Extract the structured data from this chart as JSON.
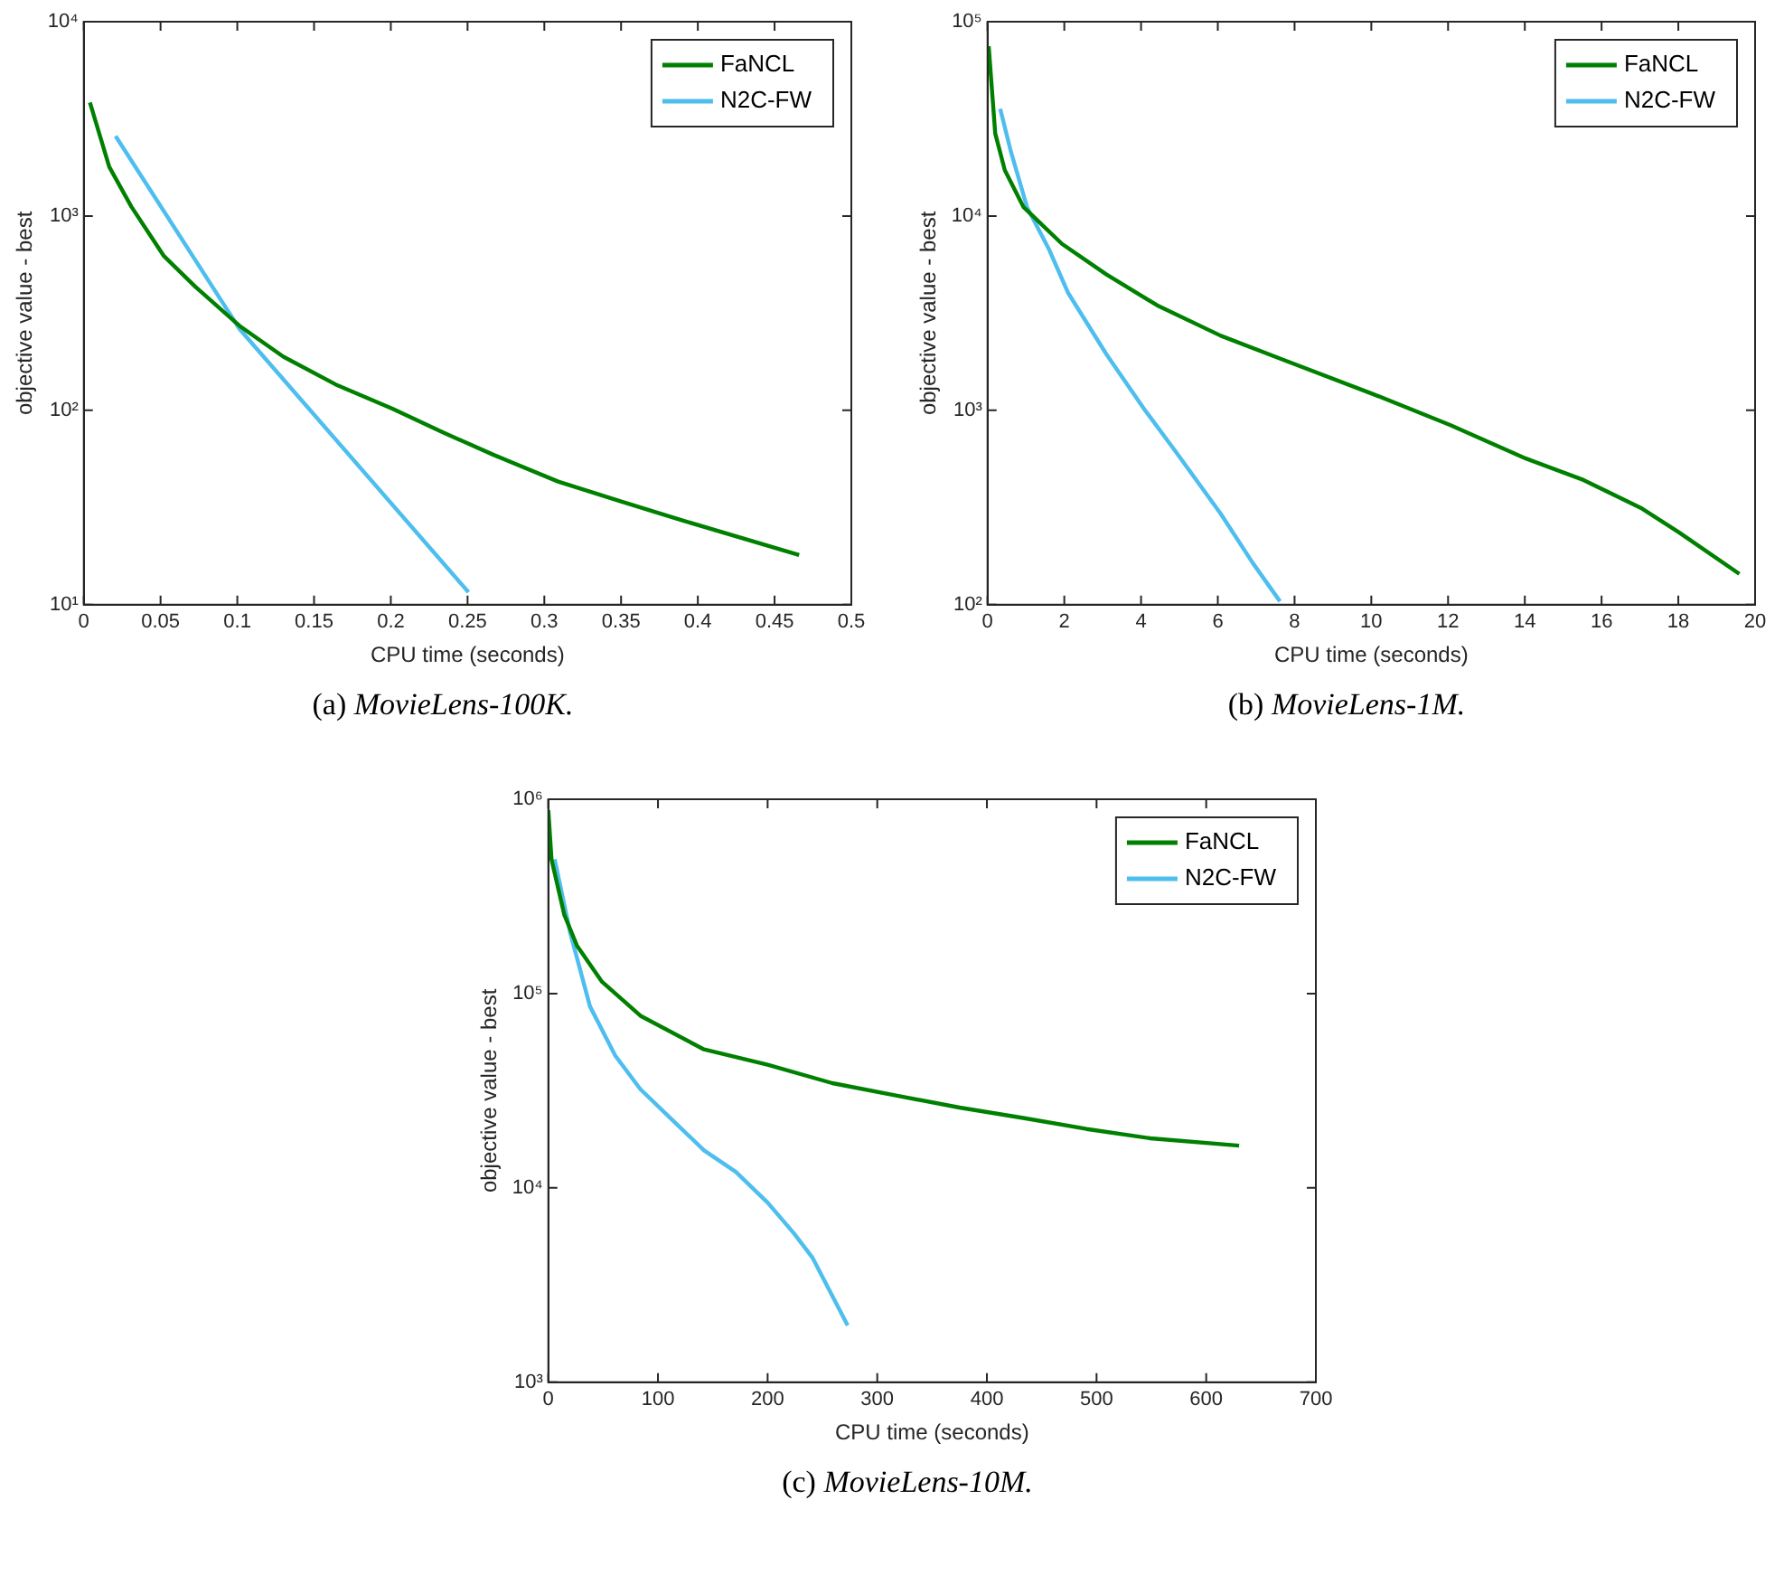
{
  "chart_data": [
    {
      "type": "line",
      "title": "(a) MovieLens-100K.",
      "xlabel": "CPU time (seconds)",
      "ylabel": "objective value - best",
      "log": "y",
      "marker": "none",
      "line_style": "solid",
      "grid": false,
      "legend": "top right",
      "xlim": [
        0,
        0.5
      ],
      "xticks": [
        0,
        0.05,
        0.1,
        0.15,
        0.2,
        0.25,
        0.3,
        0.35,
        0.4,
        0.45,
        0.5
      ],
      "ylim": [
        10,
        10000
      ],
      "yticks": [
        {
          "value": 10,
          "label": "10¹"
        },
        {
          "value": 100,
          "label": "10²"
        },
        {
          "value": 1000,
          "label": "10³"
        },
        {
          "value": 10000,
          "label": "10⁴"
        }
      ],
      "series": [
        {
          "name": "FaNCL",
          "color": "#008000",
          "x": [
            0.004,
            0.0166,
            0.031,
            0.052,
            0.0725,
            0.1015,
            0.13,
            0.164,
            0.201,
            0.234,
            0.267,
            0.309,
            0.35,
            0.391,
            0.466
          ],
          "values": [
            3840,
            1790,
            1117,
            625,
            434,
            272,
            189,
            136,
            102,
            77,
            59,
            43,
            34,
            27,
            18
          ]
        },
        {
          "name": "N2C-FW",
          "color": "#4dbeee",
          "x": [
            0.0207,
            0.1015,
            0.2506
          ],
          "values": [
            2580,
            262,
            11.6
          ]
        }
      ]
    },
    {
      "type": "line",
      "title": "(b) MovieLens-1M.",
      "xlabel": "CPU time (seconds)",
      "ylabel": "objective value - best",
      "log": "y",
      "marker": "none",
      "line_style": "solid",
      "grid": false,
      "legend": "top right",
      "xlim": [
        0,
        20
      ],
      "xticks": [
        0,
        2,
        4,
        6,
        8,
        10,
        12,
        14,
        16,
        18,
        20
      ],
      "ylim": [
        100,
        100000
      ],
      "yticks": [
        {
          "value": 100,
          "label": "10²"
        },
        {
          "value": 1000,
          "label": "10³"
        },
        {
          "value": 10000,
          "label": "10⁴"
        },
        {
          "value": 100000,
          "label": "10⁵"
        }
      ],
      "series": [
        {
          "name": "FaNCL",
          "color": "#008000",
          "x": [
            0.03,
            0.2,
            0.45,
            0.94,
            1.94,
            3.1,
            4.42,
            6.08,
            7.74,
            10.06,
            12.05,
            14.03,
            15.53,
            17.02,
            18.01,
            19.59
          ],
          "values": [
            74800,
            26600,
            17200,
            11100,
            7190,
            5000,
            3470,
            2420,
            1810,
            1210,
            842,
            565,
            438,
            315,
            236,
            144
          ]
        },
        {
          "name": "N2C-FW",
          "color": "#4dbeee",
          "x": [
            0.33,
            0.61,
            1.03,
            1.61,
            2.1,
            3.1,
            4.09,
            4.92,
            6.08,
            6.91,
            7.62
          ],
          "values": [
            35600,
            21400,
            11100,
            6680,
            4020,
            1940,
            1010,
            607,
            293,
            164,
            104
          ]
        }
      ]
    },
    {
      "type": "line",
      "title": "(c) MovieLens-10M.",
      "xlabel": "CPU time (seconds)",
      "ylabel": "objective value - best",
      "log": "y",
      "marker": "none",
      "line_style": "solid",
      "grid": false,
      "legend": "top right",
      "xlim": [
        0,
        700
      ],
      "xticks": [
        0,
        100,
        200,
        300,
        400,
        500,
        600,
        700
      ],
      "ylim": [
        1000,
        1000000
      ],
      "yticks": [
        {
          "value": 1000,
          "label": "10³"
        },
        {
          "value": 10000,
          "label": "10⁴"
        },
        {
          "value": 100000,
          "label": "10⁵"
        },
        {
          "value": 1000000,
          "label": "10⁶"
        }
      ],
      "series": [
        {
          "name": "FaNCL",
          "color": "#008000",
          "x": [
            0,
            2.9,
            14.5,
            26,
            49,
            84,
            142,
            200,
            259,
            317,
            375,
            433,
            491,
            549,
            630
          ],
          "values": [
            877000,
            491000,
            255000,
            177000,
            115000,
            76900,
            51600,
            43000,
            34600,
            29900,
            25900,
            22900,
            20100,
            18000,
            16500
          ]
        },
        {
          "name": "N2C-FW",
          "color": "#4dbeee",
          "x": [
            5.8,
            20,
            38,
            61,
            84,
            113,
            142,
            171,
            200,
            224,
            241,
            273
          ],
          "values": [
            491000,
            205000,
            85900,
            48000,
            32200,
            22400,
            15600,
            12100,
            8400,
            5840,
            4370,
            1960
          ]
        }
      ]
    }
  ]
}
